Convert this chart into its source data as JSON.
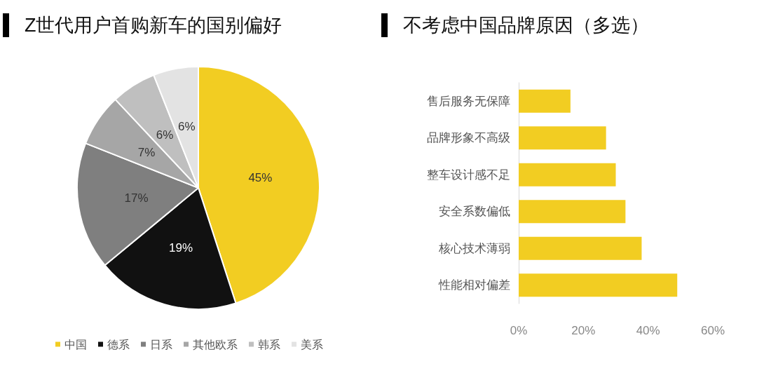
{
  "chart_data": [
    {
      "type": "pie",
      "title": "Z世代用户首购新车的国别偏好",
      "categories": [
        "中国",
        "德系",
        "日系",
        "其他欧系",
        "韩系",
        "美系"
      ],
      "values": [
        45,
        19,
        17,
        7,
        6,
        6
      ],
      "value_labels": [
        "45%",
        "19%",
        "17%",
        "7%",
        "6%",
        "6%"
      ],
      "colors": [
        "#f2cd22",
        "#111111",
        "#7f7f7f",
        "#a6a6a6",
        "#bfbfbf",
        "#e3e3e3"
      ],
      "legend": "bottom"
    },
    {
      "type": "bar",
      "orientation": "horizontal",
      "title": "不考虑中国品牌原因（多选）",
      "categories": [
        "售后服务无保障",
        "品牌形象不高级",
        "整车设计感不足",
        "安全系数偏低",
        "核心技术薄弱",
        "性能相对偏差"
      ],
      "values": [
        16,
        27,
        30,
        33,
        38,
        49
      ],
      "color": "#f2cd22",
      "xlim": [
        0,
        60
      ],
      "xticks": [
        {
          "value": 0,
          "label": "0%"
        },
        {
          "value": 20,
          "label": "20%"
        },
        {
          "value": 40,
          "label": "40%"
        },
        {
          "value": 60,
          "label": "60%"
        }
      ]
    }
  ]
}
